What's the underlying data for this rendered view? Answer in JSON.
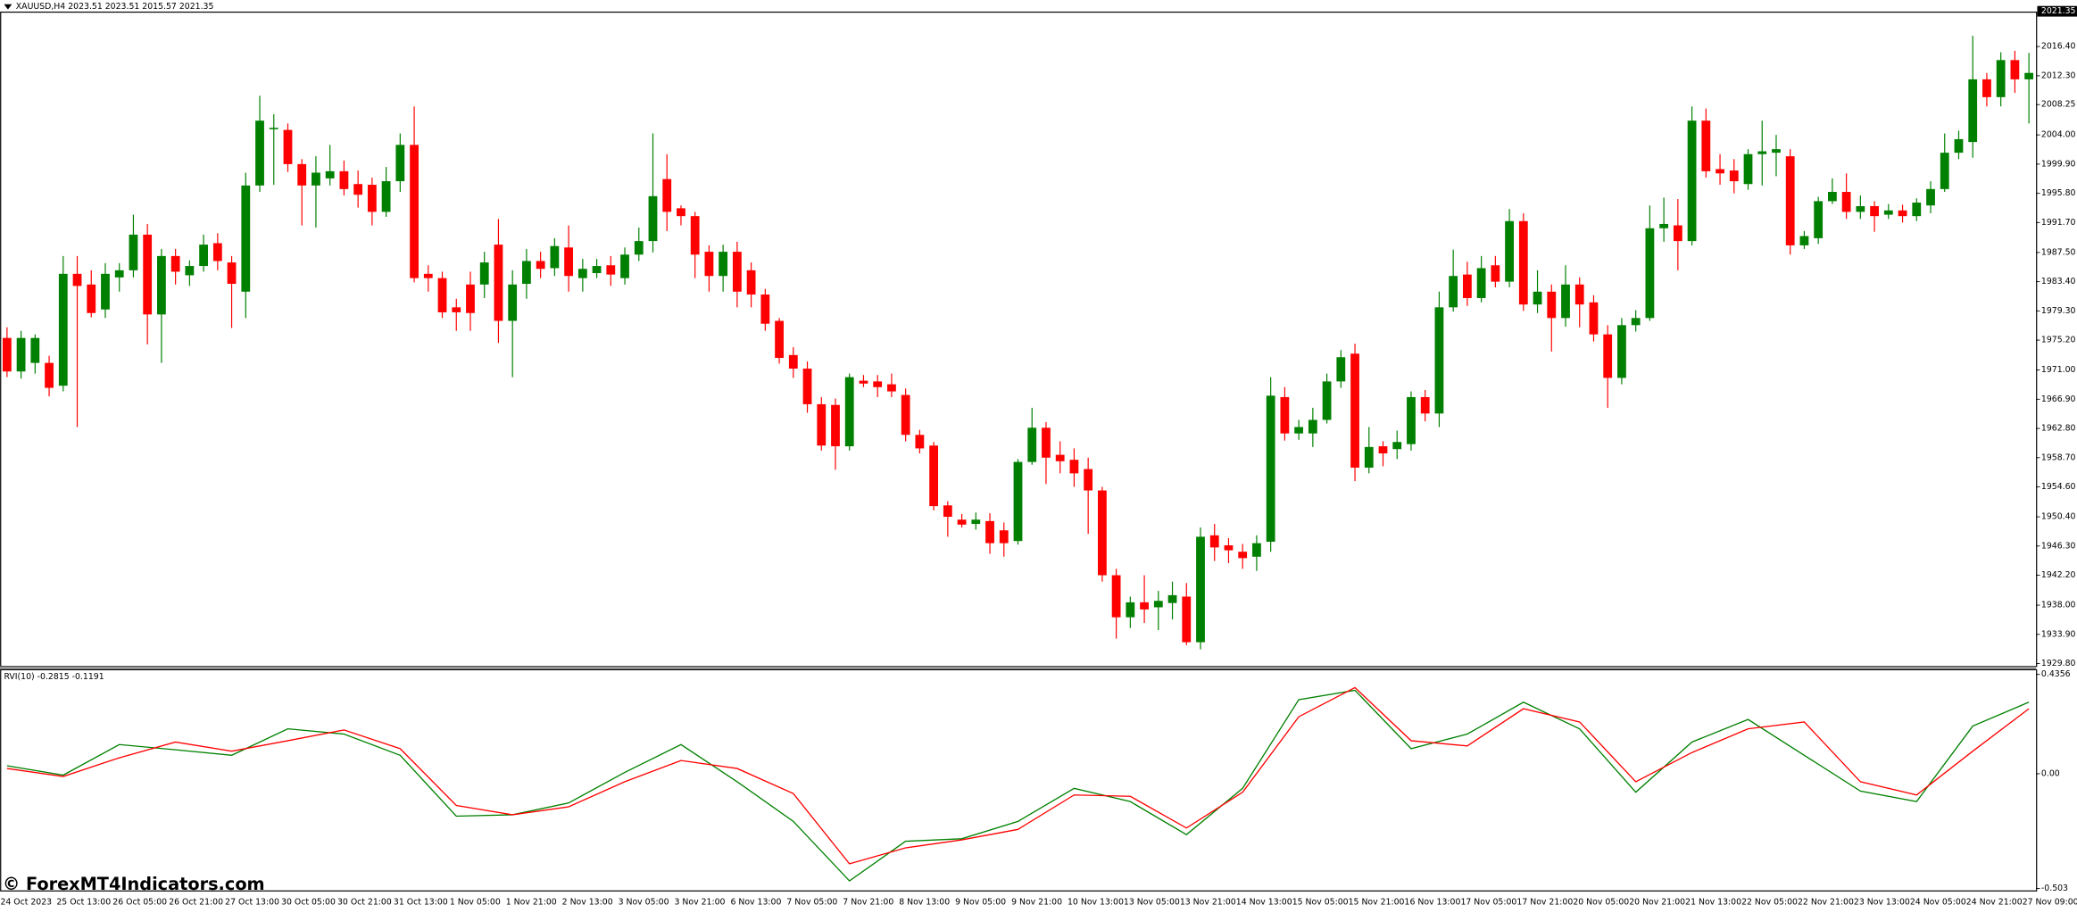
{
  "chart_data": [
    {
      "type": "candlestick",
      "title": "XAUUSD,H4  2023.51 2023.51 2015.57 2021.35",
      "price_label": 2021.35,
      "watermark": "© ForexMT4Indicators.com",
      "colors": {
        "up": "#008000",
        "down": "#ff0000"
      },
      "ylim": [
        1929.4,
        2021.23
      ],
      "yticks": [
        {
          "value": 2016.4,
          "label": "2016.40"
        },
        {
          "value": 2012.3,
          "label": "2012.30"
        },
        2008.25,
        {
          "value": 2004,
          "label": "2004.00"
        },
        {
          "value": 1999.9,
          "label": "1999.90"
        },
        {
          "value": 1995.8,
          "label": "1995.80"
        },
        {
          "value": 1991.7,
          "label": "1991.70"
        },
        {
          "value": 1987.5,
          "label": "1987.50"
        },
        {
          "value": 1983.4,
          "label": "1983.40"
        },
        {
          "value": 1979.3,
          "label": "1979.30"
        },
        {
          "value": 1975.2,
          "label": "1975.20"
        },
        {
          "value": 1971,
          "label": "1971.00"
        },
        {
          "value": 1966.9,
          "label": "1966.90"
        },
        {
          "value": 1962.8,
          "label": "1962.80"
        },
        {
          "value": 1958.7,
          "label": "1958.70"
        },
        {
          "value": 1954.6,
          "label": "1954.60"
        },
        {
          "value": 1950.4,
          "label": "1950.40"
        },
        {
          "value": 1946.3,
          "label": "1946.30"
        },
        {
          "value": 1942.2,
          "label": "1942.20"
        },
        {
          "value": 1938,
          "label": "1938.00"
        },
        {
          "value": 1933.9,
          "label": "1933.90"
        },
        {
          "value": 1929.8,
          "label": "1929.80"
        }
      ],
      "categories": [
        "24 Oct 2023",
        null,
        null,
        null,
        "25 Oct 13:00",
        null,
        null,
        null,
        "26 Oct 05:00",
        null,
        null,
        null,
        "26 Oct 21:00",
        null,
        null,
        null,
        "27 Oct 13:00",
        null,
        null,
        null,
        "30 Oct 05:00",
        null,
        null,
        null,
        "30 Oct 21:00",
        null,
        null,
        null,
        "31 Oct 13:00",
        null,
        null,
        null,
        "1 Nov 05:00",
        null,
        null,
        null,
        "1 Nov 21:00",
        null,
        null,
        null,
        "2 Nov 13:00",
        null,
        null,
        null,
        "3 Nov 05:00",
        null,
        null,
        null,
        "3 Nov 21:00",
        null,
        null,
        null,
        "6 Nov 13:00",
        null,
        null,
        null,
        "7 Nov 05:00",
        null,
        null,
        null,
        "7 Nov 21:00",
        null,
        null,
        null,
        "8 Nov 13:00",
        null,
        null,
        null,
        "9 Nov 05:00",
        null,
        null,
        null,
        "9 Nov 21:00",
        null,
        null,
        null,
        "10 Nov 13:00",
        null,
        null,
        null,
        "13 Nov 05:00",
        null,
        null,
        null,
        "13 Nov 21:00",
        null,
        null,
        null,
        "14 Nov 13:00",
        null,
        null,
        null,
        "15 Nov 05:00",
        null,
        null,
        null,
        "15 Nov 21:00",
        null,
        null,
        null,
        "16 Nov 13:00",
        null,
        null,
        null,
        "17 Nov 05:00",
        null,
        null,
        null,
        "17 Nov 21:00",
        null,
        null,
        null,
        "20 Nov 05:00",
        null,
        null,
        null,
        "20 Nov 21:00",
        null,
        null,
        null,
        "21 Nov 13:00",
        null,
        null,
        null,
        "22 Nov 05:00",
        null,
        null,
        null,
        "22 Nov 21:00",
        null,
        null,
        null,
        "23 Nov 13:00",
        null,
        null,
        null,
        "24 Nov 05:00",
        null,
        null,
        null,
        "24 Nov 21:00",
        null,
        null,
        null,
        "27 Nov 09:00"
      ],
      "open": [
        1975.5,
        1970.8,
        1972,
        1972,
        1968.8,
        1984.5,
        1983,
        1979.5,
        1984,
        1985,
        1990,
        1978.8,
        1987,
        1984.3,
        1985.6,
        1988.8,
        1986.1,
        1982,
        1996.9,
        2004.8,
        2004.7,
        1999.9,
        1996.9,
        1997.9,
        1998.9,
        1997.1,
        1997,
        1993.2,
        1997.5,
        2002.6,
        1984.5,
        1983.9,
        1979.8,
        1983,
        1983,
        1988.6,
        1977.9,
        1983.1,
        1986.3,
        1985.3,
        1988.2,
        1983.9,
        1984.6,
        1985.7,
        1983.9,
        1987.2,
        1989.1,
        1997.8,
        1993.7,
        1992.6,
        1987.6,
        1984.2,
        1987.6,
        1985,
        1981.6,
        1977.9,
        1973.1,
        1971.2,
        1966.2,
        1966.1,
        1960.3,
        1969.5,
        1969.4,
        1969,
        1967.5,
        1961.9,
        1960.4,
        1952,
        1950,
        1949.4,
        1949.8,
        1948.5,
        1947,
        1958.1,
        1962.9,
        1959.1,
        1958.4,
        1957.1,
        1954.1,
        1942.2,
        1936.3,
        1938.4,
        1937.7,
        1938.3,
        1939.2,
        1932.8,
        1947.8,
        1946.4,
        1945.5,
        1944.8,
        1946.9,
        1967.2,
        1962.1,
        1962.1,
        1964,
        1969.4,
        1973.3,
        1957.3,
        1960.3,
        1959.9,
        1960.6,
        1967.2,
        1964.9,
        1979.8,
        1984.4,
        1981.1,
        1985.7,
        1983.4,
        1991.9,
        1980.2,
        1982,
        1978.3,
        1983,
        1980.5,
        1976,
        1969.9,
        1977.3,
        1978.3,
        1990.9,
        1991.3,
        1989.1,
        2006,
        1999.2,
        1999,
        1997.1,
        2001.3,
        2001.5,
        2001,
        1988.5,
        1989.5,
        1994.7,
        1996,
        1993.2,
        1994,
        1992.8,
        1993.4,
        1992.6,
        1994.1,
        1996.4,
        2001.5,
        2003,
        2011.8,
        2009.3,
        2014.5,
        2011.8
      ],
      "high": [
        1977,
        1976.5,
        1976,
        1973,
        1987,
        1987,
        1985,
        1986,
        1986,
        1992.8,
        1991.5,
        1988,
        1988,
        1986.4,
        1990,
        1990.2,
        1987,
        1998.7,
        2009.5,
        2006.9,
        2005.6,
        2000.6,
        2001,
        2002.6,
        2000.4,
        1999,
        1998,
        1999.5,
        2004.2,
        2008,
        1985.7,
        1984.8,
        1981,
        1984.8,
        1987.6,
        1992.2,
        1985,
        1988,
        1987.6,
        1989.5,
        1991.3,
        1986.6,
        1986.6,
        1987,
        1988.2,
        1991,
        2004.2,
        2001.3,
        1994.1,
        1993.2,
        1988.5,
        1988.6,
        1989,
        1986.1,
        1982.4,
        1978.3,
        1974.2,
        1972.2,
        1967.2,
        1967,
        1970.5,
        1970.3,
        1970.3,
        1970.5,
        1968.4,
        1962.6,
        1960.9,
        1952.6,
        1950.8,
        1951,
        1950.9,
        1949.6,
        1958.5,
        1965.7,
        1963.7,
        1961,
        1960,
        1958.7,
        1954.6,
        1943.1,
        1939.2,
        1942.2,
        1940,
        1941.3,
        1941.1,
        1948.9,
        1949.4,
        1947.4,
        1946.6,
        1947.8,
        1970,
        1968.6,
        1964,
        1965.7,
        1970.5,
        1973.8,
        1974.7,
        1963,
        1961,
        1962.5,
        1968,
        1968.2,
        1982,
        1987.9,
        1986.2,
        1987,
        1987,
        1993.6,
        1993,
        1985,
        1983,
        1985.7,
        1984,
        1981.5,
        1977.3,
        1978.3,
        1979.4,
        1994.1,
        1995.2,
        1995,
        2008,
        2007.7,
        2001.3,
        2000.6,
        2002,
        2006,
        2004,
        2002,
        1990.5,
        1995.3,
        1997.9,
        1998.6,
        1995.5,
        1994.7,
        1994.3,
        1994.2,
        1995.1,
        1997.5,
        2004.2,
        2004.6,
        2017.9,
        2012.7,
        2015.6,
        2015.8,
        2015.5
      ],
      "low": [
        1970,
        1969.8,
        1970.5,
        1967.3,
        1968,
        1963,
        1978.4,
        1978.3,
        1982,
        1984,
        1974.6,
        1972,
        1983,
        1982.8,
        1984.8,
        1985,
        1976.9,
        1978.3,
        1996,
        1997,
        1998.8,
        1991.3,
        1991,
        1996.9,
        1995.5,
        1993.8,
        1991.3,
        1992.5,
        1996,
        1983.3,
        1982,
        1978.3,
        1976.5,
        1976.5,
        1981.1,
        1974.8,
        1970,
        1981,
        1983.9,
        1984.2,
        1982,
        1982,
        1983.9,
        1982.8,
        1983,
        1986.3,
        1987.5,
        1990.5,
        1991.3,
        1983.9,
        1982,
        1982,
        1979.8,
        1979.8,
        1976.5,
        1971.9,
        1969.9,
        1965,
        1959.7,
        1957,
        1959.7,
        1968.6,
        1967.2,
        1967.2,
        1961,
        1959.3,
        1951.3,
        1947.6,
        1948.9,
        1948.6,
        1945.2,
        1944.8,
        1946.5,
        1957.7,
        1955,
        1956.5,
        1954.6,
        1948,
        1941.3,
        1933.3,
        1934.8,
        1935.5,
        1934.5,
        1936,
        1932.4,
        1931.8,
        1944.2,
        1943.9,
        1943.1,
        1942.8,
        1945.5,
        1961.1,
        1961.2,
        1960.2,
        1963.5,
        1968.5,
        1955.4,
        1956.5,
        1957.5,
        1958.5,
        1959.7,
        1963.8,
        1963,
        1979.2,
        1980,
        1980.5,
        1982.6,
        1982.6,
        1979.3,
        1979,
        1973.6,
        1977.1,
        1977,
        1975,
        1965.7,
        1969,
        1976.4,
        1977.9,
        1989,
        1985,
        1988.5,
        1998,
        1997,
        1995.8,
        1996.3,
        1996.9,
        1998.2,
        1987.2,
        1988,
        1988.7,
        1994.3,
        1992.2,
        1992.2,
        1990.4,
        1992.2,
        1991.7,
        1991.9,
        1993,
        1996,
        2000.6,
        2000.8,
        2008,
        2008,
        2009.9,
        2005.6
      ],
      "close": [
        1970.8,
        1975.5,
        1975.5,
        1968.5,
        1984.5,
        1982.8,
        1979,
        1984.5,
        1985,
        1990,
        1978.8,
        1987,
        1984.8,
        1985.6,
        1988.6,
        1986.3,
        1983.1,
        1996.9,
        2006,
        2005,
        1999.9,
        1996.9,
        1998.7,
        1998.9,
        1996.4,
        1995.6,
        1993.2,
        1997.5,
        2002.6,
        1983.9,
        1983.9,
        1979.1,
        1979.1,
        1979,
        1986.1,
        1977.9,
        1983,
        1986.3,
        1985.2,
        1988.4,
        1984.2,
        1985.2,
        1985.6,
        1984.4,
        1987.2,
        1989.1,
        1995.4,
        1993.2,
        1992.6,
        1987.2,
        1984.2,
        1987.6,
        1982,
        1981.6,
        1977.5,
        1972.7,
        1971.2,
        1966.2,
        1960.4,
        1960.3,
        1970,
        1969.1,
        1968.6,
        1968,
        1961.9,
        1960,
        1951.9,
        1950.4,
        1949.3,
        1950,
        1946.7,
        1946.7,
        1958.1,
        1962.9,
        1958.7,
        1958.2,
        1956.5,
        1954.1,
        1942.2,
        1936.3,
        1938.4,
        1937.4,
        1938.6,
        1939.4,
        1932.8,
        1947.6,
        1946.1,
        1945.7,
        1944.6,
        1946.7,
        1967.4,
        1962.1,
        1963,
        1964,
        1969.4,
        1972.8,
        1957.3,
        1960.2,
        1959.3,
        1960.9,
        1967.2,
        1964.9,
        1979.8,
        1984.2,
        1981.1,
        1985.3,
        1983.4,
        1991.9,
        1980.2,
        1982,
        1978.3,
        1983,
        1980.2,
        1976,
        1969.9,
        1977.3,
        1978.3,
        1990.9,
        1991.5,
        1989.1,
        2006,
        1998.9,
        1998.6,
        1997.5,
        2001.3,
        2001.7,
        2002,
        1988.5,
        1989.8,
        1994.7,
        1996,
        1993.2,
        1994,
        1992.6,
        1993.4,
        1992.6,
        1994.5,
        1996.4,
        2001.5,
        2003.4,
        2011.8,
        2009.3,
        2014.5,
        2011.8,
        2012.7
      ]
    },
    {
      "type": "line",
      "title": "RVI(10) -0.2815 -0.1191",
      "xlim": [
        -0.5,
        144.5
      ],
      "ylim": [
        -0.511,
        0.459
      ],
      "yticks": [
        0.4356,
        {
          "value": 0,
          "label": "0.00"
        },
        -0.503
      ],
      "x": [
        0,
        4,
        8,
        12,
        16,
        20,
        24,
        28,
        32,
        36,
        40,
        44,
        48,
        52,
        56,
        60,
        64,
        68,
        72,
        76,
        80,
        84,
        88,
        92,
        96,
        100,
        104,
        108,
        112,
        116,
        120,
        124,
        128,
        132,
        136,
        140,
        144
      ],
      "series": [
        {
          "color": "#008000",
          "values": [
            0.035,
            -0.006,
            0.128,
            0.105,
            0.081,
            0.197,
            0.174,
            0.081,
            -0.186,
            -0.18,
            -0.128,
            0.006,
            0.128,
            -0.035,
            -0.209,
            -0.47,
            -0.296,
            -0.285,
            -0.209,
            -0.064,
            -0.122,
            -0.267,
            -0.064,
            0.325,
            0.366,
            0.11,
            0.174,
            0.314,
            0.197,
            -0.081,
            0.139,
            0.238,
            0.081,
            -0.076,
            -0.122,
            0.209,
            0.314
          ]
        },
        {
          "color": "#ff0000",
          "values": [
            0.023,
            -0.012,
            0.07,
            0.139,
            0.099,
            0.145,
            0.192,
            0.11,
            -0.139,
            -0.18,
            -0.145,
            -0.035,
            0.058,
            0.023,
            -0.087,
            -0.395,
            -0.325,
            -0.29,
            -0.244,
            -0.093,
            -0.099,
            -0.238,
            -0.081,
            0.25,
            0.378,
            0.145,
            0.122,
            0.285,
            0.227,
            -0.035,
            0.093,
            0.197,
            0.227,
            -0.035,
            -0.093,
            0.099,
            0.285
          ]
        }
      ]
    }
  ]
}
